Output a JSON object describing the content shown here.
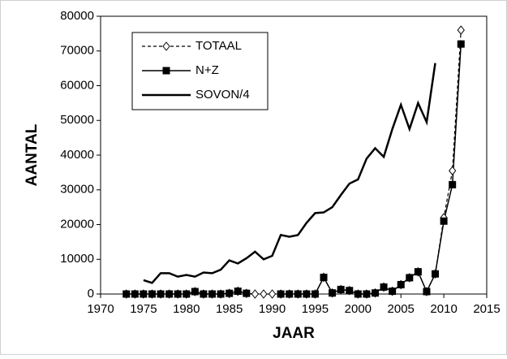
{
  "chart_data": {
    "type": "line",
    "x_label": "JAAR",
    "y_label": "AANTAL",
    "x": [
      1973,
      1974,
      1975,
      1976,
      1977,
      1978,
      1979,
      1980,
      1981,
      1982,
      1983,
      1984,
      1985,
      1986,
      1987,
      1988,
      1989,
      1990,
      1991,
      1992,
      1993,
      1994,
      1995,
      1996,
      1997,
      1998,
      1999,
      2000,
      2001,
      2002,
      2003,
      2004,
      2005,
      2006,
      2007,
      2008,
      2009,
      2010,
      2011,
      2012
    ],
    "series": [
      {
        "name": "TOTAAL",
        "color": "#000000",
        "dash": true,
        "marker": "diamond",
        "line_width": 1.2,
        "values": [
          0,
          0,
          0,
          0,
          0,
          0,
          0,
          0,
          700,
          0,
          0,
          0,
          200,
          800,
          200,
          0,
          0,
          0,
          0,
          0,
          0,
          0,
          0,
          4800,
          300,
          1300,
          1000,
          0,
          0,
          300,
          2000,
          800,
          2700,
          4700,
          6400,
          700,
          5800,
          22000,
          35500,
          76000
        ]
      },
      {
        "name": "N+Z",
        "color": "#000000",
        "dash": false,
        "marker": "square",
        "line_width": 1.5,
        "values": [
          0,
          0,
          0,
          0,
          0,
          0,
          0,
          0,
          700,
          0,
          0,
          0,
          200,
          800,
          200,
          null,
          null,
          null,
          0,
          0,
          0,
          0,
          0,
          4800,
          300,
          1300,
          1000,
          0,
          0,
          300,
          2000,
          800,
          2700,
          4700,
          6400,
          700,
          5800,
          21000,
          31500,
          72000
        ]
      },
      {
        "name": "SOVON/4",
        "color": "#000000",
        "dash": false,
        "marker": "none",
        "line_width": 2.5,
        "values": [
          null,
          null,
          4000,
          3200,
          6000,
          6000,
          5000,
          5500,
          5000,
          6200,
          6000,
          7000,
          9700,
          8800,
          10300,
          12200,
          10000,
          11000,
          17000,
          16500,
          17000,
          20500,
          23300,
          23500,
          25000,
          28500,
          31800,
          33000,
          39000,
          42000,
          39500,
          47500,
          54500,
          47500,
          55000,
          49500,
          66500,
          null,
          null,
          null
        ]
      }
    ],
    "xlim": [
      1970,
      2015
    ],
    "xticks": [
      1970,
      1975,
      1980,
      1985,
      1990,
      1995,
      2000,
      2005,
      2010,
      2015
    ],
    "ylim": [
      0,
      80000
    ],
    "yticks": [
      0,
      10000,
      20000,
      30000,
      40000,
      50000,
      60000,
      70000,
      80000
    ],
    "grid": false,
    "legend": "upper-left"
  }
}
